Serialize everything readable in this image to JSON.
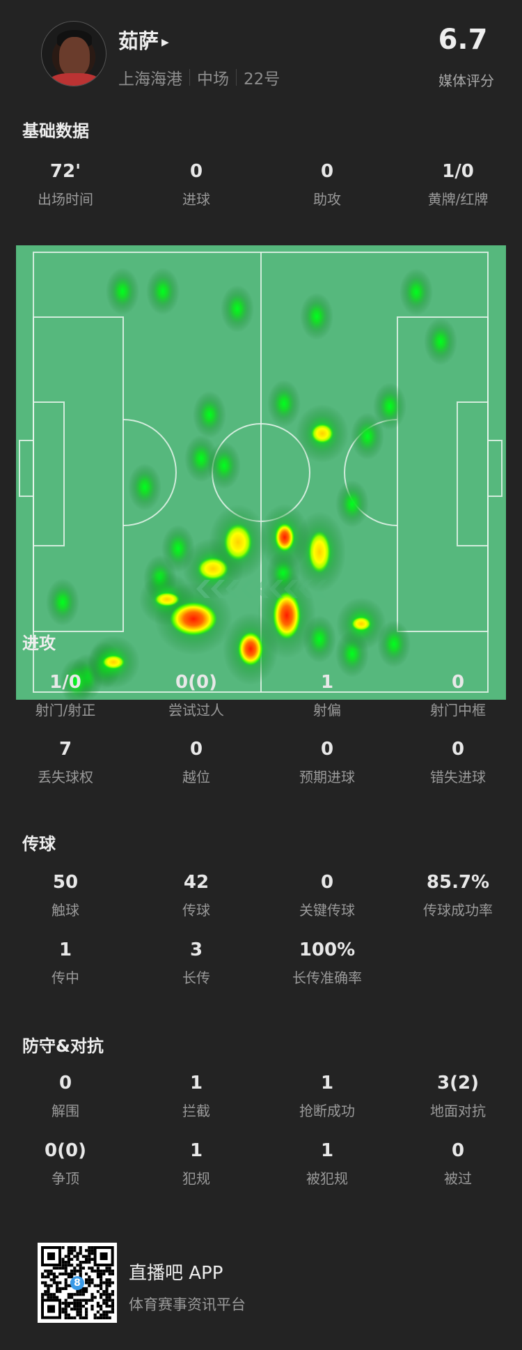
{
  "player": {
    "name": "茹萨",
    "team": "上海海港",
    "position": "中场",
    "number": "22号",
    "rating": "6.7",
    "rating_label": "媒体评分"
  },
  "basic": {
    "title": "基础数据",
    "stats": [
      {
        "value": "72'",
        "label": "出场时间"
      },
      {
        "value": "0",
        "label": "进球"
      },
      {
        "value": "0",
        "label": "助攻"
      },
      {
        "value": "1/0",
        "label": "黄牌/红牌"
      }
    ]
  },
  "attack": {
    "title": "进攻",
    "stats": [
      {
        "value": "1/0",
        "label": "射门/射正"
      },
      {
        "value": "0(0)",
        "label": "尝试过人"
      },
      {
        "value": "1",
        "label": "射偏"
      },
      {
        "value": "0",
        "label": "射门中框"
      },
      {
        "value": "7",
        "label": "丢失球权"
      },
      {
        "value": "0",
        "label": "越位"
      },
      {
        "value": "0",
        "label": "预期进球"
      },
      {
        "value": "0",
        "label": "错失进球"
      }
    ]
  },
  "passing": {
    "title": "传球",
    "stats": [
      {
        "value": "50",
        "label": "触球"
      },
      {
        "value": "42",
        "label": "传球"
      },
      {
        "value": "0",
        "label": "关键传球"
      },
      {
        "value": "85.7%",
        "label": "传球成功率"
      },
      {
        "value": "1",
        "label": "传中"
      },
      {
        "value": "3",
        "label": "长传"
      },
      {
        "value": "100%",
        "label": "长传准确率"
      }
    ]
  },
  "defense": {
    "title": "防守&对抗",
    "stats": [
      {
        "value": "0",
        "label": "解围"
      },
      {
        "value": "1",
        "label": "拦截"
      },
      {
        "value": "1",
        "label": "抢断成功"
      },
      {
        "value": "3(2)",
        "label": "地面对抗"
      },
      {
        "value": "0(0)",
        "label": "争顶"
      },
      {
        "value": "1",
        "label": "犯规"
      },
      {
        "value": "1",
        "label": "被犯规"
      },
      {
        "value": "0",
        "label": "被过"
      }
    ]
  },
  "footer": {
    "app_name": "直播吧 APP",
    "tagline": "体育赛事资讯平台",
    "qr_badge": "8"
  },
  "colors": {
    "background": "#232323",
    "pitch": "#56b87d",
    "heat_low": "#00e000",
    "heat_mid": "#ffff00",
    "heat_high": "#ff2000"
  }
}
